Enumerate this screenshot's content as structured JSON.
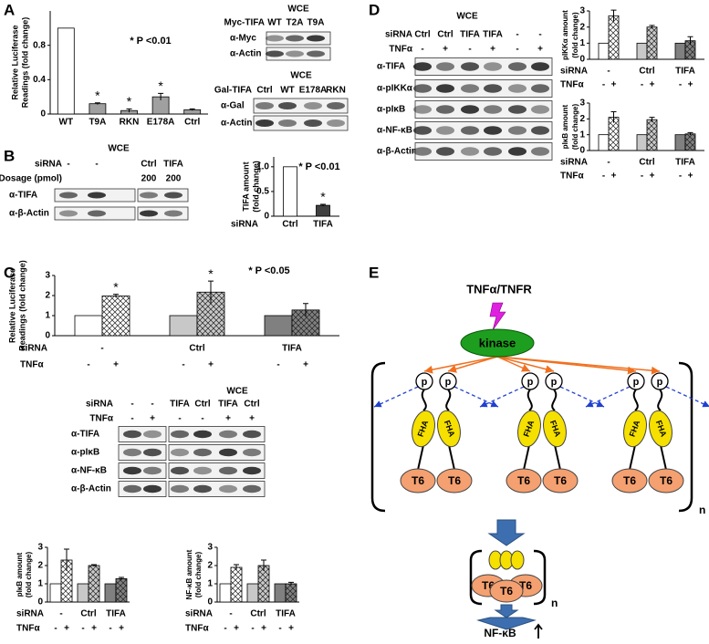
{
  "panel_labels": [
    "A",
    "B",
    "C",
    "D",
    "E"
  ],
  "chart_data": [
    {
      "type": "bar",
      "y_label": [
        "Relative Luciferase",
        "Readings (fold change)"
      ],
      "categories": [
        "WT",
        "T9A",
        "RKN",
        "E178A",
        "Ctrl"
      ],
      "values": [
        1,
        0.12,
        0.04,
        0.2,
        0.05
      ],
      "errors": [
        0,
        0.01,
        0.02,
        0.04,
        0.01
      ],
      "colors": [
        "#ffffff",
        "#a0a0a0",
        "#a0a0a0",
        "#a0a0a0",
        "#a0a0a0"
      ],
      "hatch": [
        false,
        false,
        false,
        false,
        false
      ],
      "significance": [
        null,
        "*",
        "*",
        "*",
        null
      ],
      "annotation": "* P <0.01",
      "ylim": [
        0,
        1.2
      ],
      "yticks": [
        0,
        0.4,
        0.8
      ]
    },
    {
      "type": "bar",
      "y_label": [
        "TIFA amount",
        "(fold change)"
      ],
      "x_label": "siRNA",
      "categories": [
        "Ctrl",
        "TIFA"
      ],
      "values": [
        1,
        0.22
      ],
      "errors": [
        0,
        0.02
      ],
      "colors": [
        "#ffffff",
        "#404040"
      ],
      "hatch": [
        false,
        false
      ],
      "significance": [
        null,
        "*"
      ],
      "annotation": "* P <0.01",
      "ylim": [
        0,
        1.2
      ],
      "yticks": [
        0,
        0.5,
        {
          "value": 1,
          "label": "1.0"
        }
      ]
    },
    {
      "type": "bar",
      "y_label": [
        "Relative Luciferase",
        "Readings (fold change)"
      ],
      "group_title": "siRNA",
      "groups": [
        "-",
        "Ctrl",
        "TIFA"
      ],
      "category_title": "TNFα",
      "categories": [
        "-",
        "+",
        "-",
        "+",
        "-",
        "+"
      ],
      "values": [
        1,
        1.98,
        1,
        2.17,
        1,
        1.28
      ],
      "errors": [
        0,
        0.08,
        0,
        0.55,
        0,
        0.32
      ],
      "colors": [
        "#ffffff",
        "#ffffff",
        "#c8c8c8",
        "#c8c8c8",
        "#808080",
        "#808080"
      ],
      "hatch": [
        false,
        true,
        false,
        true,
        false,
        true
      ],
      "significance": [
        null,
        "*",
        null,
        "*",
        null,
        null
      ],
      "annotation": "* P <0.05",
      "ylim": [
        0,
        3
      ],
      "yticks": [
        0,
        1,
        2,
        3
      ]
    },
    {
      "type": "bar",
      "y_label": [
        "pIκB amount",
        "(fold change)"
      ],
      "group_title": "siRNA",
      "groups": [
        "-",
        "Ctrl",
        "TIFA"
      ],
      "category_title": "TNFα",
      "categories": [
        "-",
        "+",
        "-",
        "+",
        "-",
        "+"
      ],
      "values": [
        1,
        2.3,
        1,
        2.0,
        1,
        1.28
      ],
      "errors": [
        0,
        0.6,
        0,
        0.05,
        0,
        0.07
      ],
      "colors": [
        "#ffffff",
        "#ffffff",
        "#c8c8c8",
        "#c8c8c8",
        "#808080",
        "#808080"
      ],
      "hatch": [
        false,
        true,
        false,
        true,
        false,
        true
      ],
      "ylim": [
        0,
        3
      ],
      "yticks": [
        0,
        1,
        2,
        3
      ]
    },
    {
      "type": "bar",
      "y_label": [
        "NF-κB amount",
        "(fold change)"
      ],
      "group_title": "siRNA",
      "groups": [
        "-",
        "Ctrl",
        "TIFA"
      ],
      "category_title": "TNFα",
      "categories": [
        "-",
        "+",
        "-",
        "+",
        "-",
        "+"
      ],
      "values": [
        1,
        1.9,
        1,
        2.0,
        1,
        1.0
      ],
      "errors": [
        0,
        0.15,
        0,
        0.3,
        0,
        0.08
      ],
      "colors": [
        "#ffffff",
        "#ffffff",
        "#c8c8c8",
        "#c8c8c8",
        "#808080",
        "#808080"
      ],
      "hatch": [
        false,
        true,
        false,
        true,
        false,
        true
      ],
      "ylim": [
        0,
        3
      ],
      "yticks": [
        0,
        1,
        2,
        3
      ]
    },
    {
      "type": "bar",
      "y_label": [
        "pIKKα amount",
        "(fold change)"
      ],
      "group_title": "siRNA",
      "groups": [
        "-",
        "Ctrl",
        "TIFA"
      ],
      "category_title": "TNFα",
      "categories": [
        "-",
        "+",
        "-",
        "+",
        "-",
        "+"
      ],
      "values": [
        1,
        2.7,
        1,
        2.0,
        1,
        1.15
      ],
      "errors": [
        0,
        0.35,
        0,
        0.1,
        0,
        0.25
      ],
      "colors": [
        "#ffffff",
        "#ffffff",
        "#c8c8c8",
        "#c8c8c8",
        "#808080",
        "#808080"
      ],
      "hatch": [
        false,
        true,
        false,
        true,
        false,
        true
      ],
      "ylim": [
        0,
        3
      ],
      "yticks": [
        0,
        1,
        2,
        3
      ]
    },
    {
      "type": "bar",
      "y_label": [
        "pIκB amount",
        "(fold change)"
      ],
      "group_title": "siRNA",
      "groups": [
        "-",
        "Ctrl",
        "TIFA"
      ],
      "category_title": "TNFα",
      "categories": [
        "-",
        "+",
        "-",
        "+",
        "-",
        "+"
      ],
      "values": [
        1,
        2.1,
        1,
        1.95,
        1,
        1.05
      ],
      "errors": [
        0,
        0.35,
        0,
        0.15,
        0,
        0.08
      ],
      "colors": [
        "#ffffff",
        "#ffffff",
        "#c8c8c8",
        "#c8c8c8",
        "#808080",
        "#808080"
      ],
      "hatch": [
        false,
        true,
        false,
        true,
        false,
        true
      ],
      "ylim": [
        0,
        3
      ],
      "yticks": [
        0,
        1,
        2,
        3
      ]
    }
  ],
  "blots": [
    {
      "header": "WCE",
      "lane_rows": [
        {
          "title": "Myc-TIFA",
          "lanes": [
            "WT",
            "T2A",
            "T9A"
          ]
        }
      ],
      "antibodies": [
        "α-Myc",
        "α-Actin"
      ]
    },
    {
      "header": "WCE",
      "lane_rows": [
        {
          "title": "Gal-TIFA",
          "lanes": [
            "Ctrl",
            "WT",
            "E178A",
            "RKN"
          ]
        }
      ],
      "antibodies": [
        "α-Gal",
        "α-Actin"
      ]
    },
    {
      "header": "WCE",
      "lane_rows": [
        {
          "title": "siRNA",
          "lanes": [
            "-",
            "-",
            "Ctrl",
            "TIFA"
          ]
        },
        {
          "title": "Dosage (pmol)",
          "lanes": [
            null,
            null,
            "200",
            "200"
          ]
        }
      ],
      "antibodies": [
        "α-TIFA",
        "α-β-Actin"
      ]
    },
    {
      "header": "WCE",
      "lane_rows": [
        {
          "title": "siRNA",
          "lanes": [
            "-",
            "-",
            "TIFA",
            "Ctrl",
            "TIFA",
            "Ctrl"
          ]
        },
        {
          "title": "TNFα",
          "lanes": [
            "-",
            "+",
            "-",
            "-",
            "+",
            "+"
          ]
        }
      ],
      "antibodies": [
        "α-TIFA",
        "α-pIκB",
        "α-NF-κB",
        "α-β-Actin"
      ]
    },
    {
      "header": "WCE",
      "lane_rows": [
        {
          "title": "siRNA",
          "lanes": [
            "Ctrl",
            "Ctrl",
            "TIFA",
            "TIFA",
            "-",
            "-"
          ]
        },
        {
          "title": "TNFα",
          "lanes": [
            "-",
            "+",
            "-",
            "+",
            "-",
            "+"
          ]
        }
      ],
      "antibodies": [
        "α-TIFA",
        "α-pIKKα",
        "α-pIκB",
        "α-NF-κB",
        "α-β-Actin"
      ]
    }
  ],
  "diagram": {
    "stimulus": "TNFα/TNFR",
    "kinase": "kinase",
    "phospho": "p",
    "domain": "FHA",
    "partner": "T6",
    "repeat": "n",
    "output": "NF-κB"
  }
}
